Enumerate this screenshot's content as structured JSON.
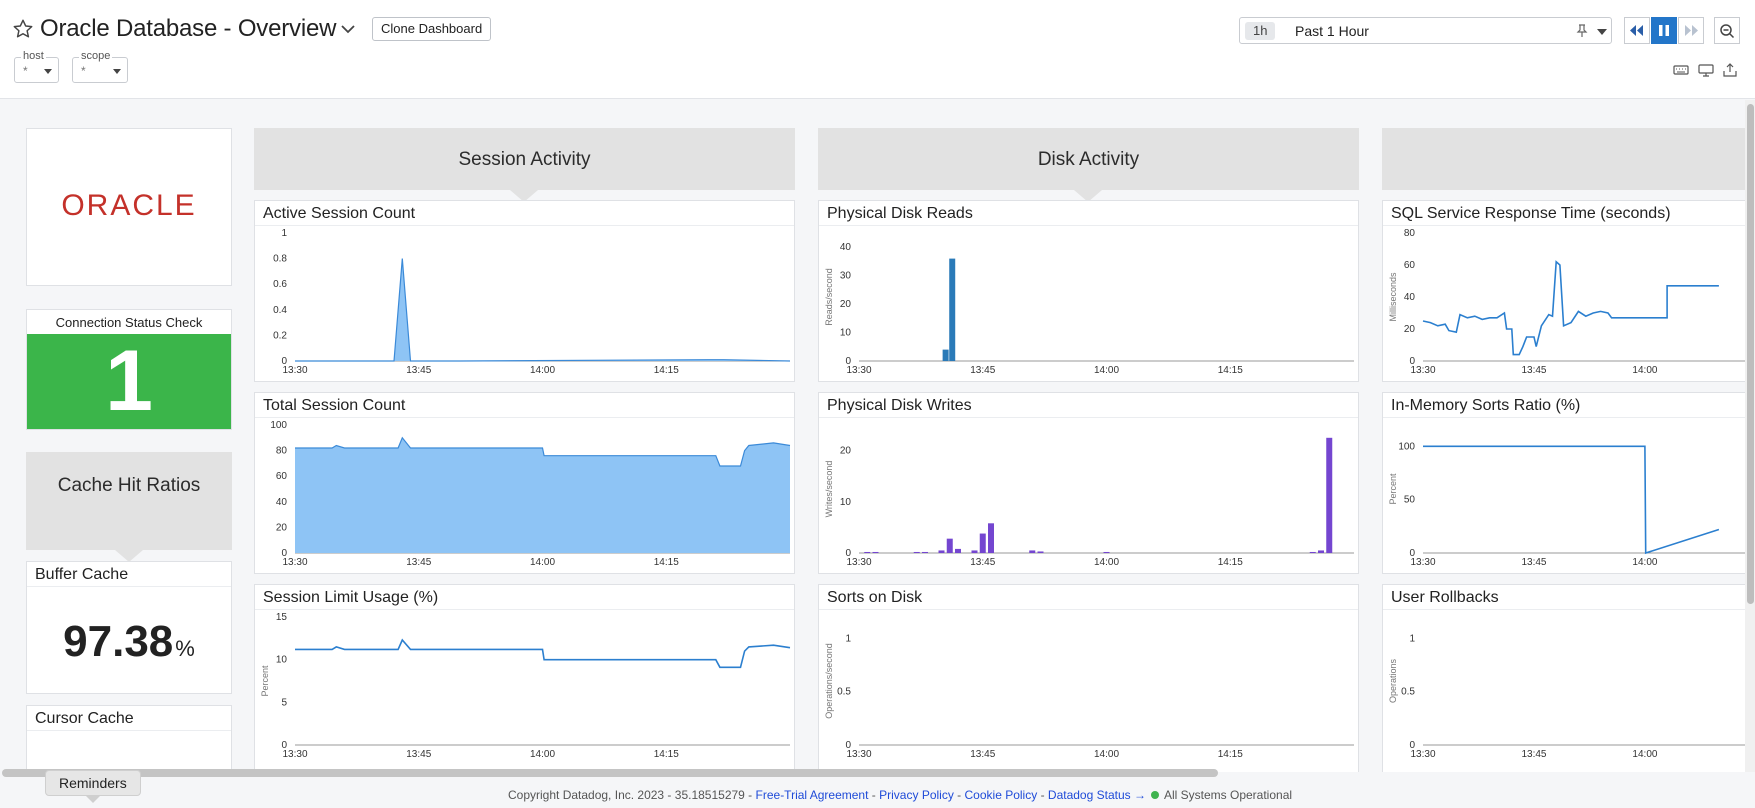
{
  "header": {
    "title": "Oracle Database - Overview",
    "clone_label": "Clone Dashboard",
    "variables": [
      {
        "label": "host",
        "value": "*"
      },
      {
        "label": "scope",
        "value": "*"
      }
    ],
    "time": {
      "chip": "1h",
      "range": "Past 1 Hour"
    }
  },
  "left": {
    "logo_text": "ORACLE",
    "connection": {
      "title": "Connection Status Check",
      "value": "1",
      "color": "#3bb54a"
    },
    "cache_note": "Cache Hit Ratios",
    "buffer": {
      "title": "Buffer Cache",
      "value": "97.38",
      "unit": "%"
    },
    "cursor": {
      "title": "Cursor Cache"
    }
  },
  "notes": {
    "session": "Session Activity",
    "disk": "Disk Activity"
  },
  "widgets": {
    "active_session": {
      "title": "Active Session Count"
    },
    "total_session": {
      "title": "Total Session Count"
    },
    "session_limit": {
      "title": "Session Limit Usage (%)"
    },
    "disk_reads": {
      "title": "Physical Disk Reads"
    },
    "disk_writes": {
      "title": "Physical Disk Writes"
    },
    "sorts_disk": {
      "title": "Sorts on Disk"
    },
    "sql_resp": {
      "title": "SQL Service Response Time (seconds)"
    },
    "inmem_sorts": {
      "title": "In-Memory Sorts Ratio (%)"
    },
    "user_rollbacks": {
      "title": "User Rollbacks"
    }
  },
  "chart_data": [
    {
      "id": "active_session",
      "type": "area",
      "ylabel": "",
      "ylim": [
        0,
        1
      ],
      "yticks": [
        "0",
        "0.2",
        "0.4",
        "0.6",
        "0.8",
        "1"
      ],
      "xticks": [
        "13:30",
        "13:45",
        "14:00",
        "14:15"
      ],
      "color": "#8ec4f5",
      "points": [
        [
          0,
          0
        ],
        [
          12,
          0
        ],
        [
          13,
          0.8
        ],
        [
          14,
          0
        ],
        [
          20,
          0
        ],
        [
          50,
          0.01
        ],
        [
          52,
          0.01
        ],
        [
          60,
          0
        ]
      ]
    },
    {
      "id": "total_session",
      "type": "area",
      "ylabel": "",
      "ylim": [
        0,
        100
      ],
      "yticks": [
        "0",
        "20",
        "40",
        "60",
        "80",
        "100"
      ],
      "xticks": [
        "13:30",
        "13:45",
        "14:00",
        "14:15"
      ],
      "color": "#8ec4f5",
      "points": [
        [
          0,
          82
        ],
        [
          4.5,
          82
        ],
        [
          5,
          84
        ],
        [
          6,
          82
        ],
        [
          12.5,
          82
        ],
        [
          13,
          90
        ],
        [
          14,
          82
        ],
        [
          30,
          82
        ],
        [
          30.2,
          76
        ],
        [
          51,
          76
        ],
        [
          51.5,
          68
        ],
        [
          54,
          68
        ],
        [
          54.5,
          80
        ],
        [
          55,
          84
        ],
        [
          58,
          86
        ],
        [
          60,
          84
        ]
      ]
    },
    {
      "id": "session_limit",
      "type": "line",
      "ylabel": "Percent",
      "ylim": [
        0,
        15
      ],
      "yticks": [
        "0",
        "5",
        "10",
        "15"
      ],
      "xticks": [
        "13:30",
        "13:45",
        "14:00",
        "14:15"
      ],
      "color": "#2b7fcf",
      "points": [
        [
          0,
          11.2
        ],
        [
          4.5,
          11.2
        ],
        [
          5,
          11.5
        ],
        [
          6,
          11.2
        ],
        [
          12.5,
          11.2
        ],
        [
          13,
          12.3
        ],
        [
          14,
          11.2
        ],
        [
          30,
          11.2
        ],
        [
          30.2,
          10
        ],
        [
          51,
          10
        ],
        [
          51.5,
          9.1
        ],
        [
          54,
          9.1
        ],
        [
          54.5,
          11
        ],
        [
          55,
          11.5
        ],
        [
          58,
          11.7
        ],
        [
          60,
          11.4
        ]
      ]
    },
    {
      "id": "disk_reads",
      "type": "bar",
      "ylabel": "Reads/second",
      "ylim": [
        0,
        45
      ],
      "yticks": [
        "0",
        "10",
        "20",
        "30",
        "40"
      ],
      "xticks": [
        "13:30",
        "13:45",
        "14:00",
        "14:15"
      ],
      "color": "#2a7ab8",
      "points": [
        [
          10.5,
          4
        ],
        [
          11.3,
          36
        ]
      ]
    },
    {
      "id": "disk_writes",
      "type": "bar",
      "ylabel": "Writes/second",
      "ylim": [
        0,
        25
      ],
      "yticks": [
        "0",
        "10",
        "20"
      ],
      "xticks": [
        "13:30",
        "13:45",
        "14:00",
        "14:15"
      ],
      "color": "#7446d0",
      "points": [
        [
          1,
          0.2
        ],
        [
          2,
          0.2
        ],
        [
          7,
          0.2
        ],
        [
          8,
          0.2
        ],
        [
          10,
          0.5
        ],
        [
          11,
          2.8
        ],
        [
          12,
          0.8
        ],
        [
          14,
          0.5
        ],
        [
          15,
          3.8
        ],
        [
          16,
          5.8
        ],
        [
          21,
          0.5
        ],
        [
          22,
          0.3
        ],
        [
          30,
          0.2
        ],
        [
          55,
          0.2
        ],
        [
          56,
          0.5
        ],
        [
          57,
          22.5
        ]
      ]
    },
    {
      "id": "sorts_disk",
      "type": "line",
      "ylabel": "Operations/second",
      "ylim": [
        0,
        1.2
      ],
      "yticks": [
        "0",
        "0.5",
        "1"
      ],
      "xticks": [
        "13:30",
        "13:45",
        "14:00",
        "14:15"
      ],
      "color": "#2b7fcf",
      "points": []
    },
    {
      "id": "sql_resp",
      "type": "line",
      "ylabel": "Milliseconds",
      "ylim": [
        0,
        80
      ],
      "yticks": [
        "0",
        "20",
        "40",
        "60",
        "80"
      ],
      "xticks": [
        "13:30",
        "13:45",
        "14:00"
      ],
      "color": "#2b7fcf",
      "points": [
        [
          0,
          25
        ],
        [
          1,
          24
        ],
        [
          2,
          22
        ],
        [
          3,
          23
        ],
        [
          3.5,
          19
        ],
        [
          4.5,
          18
        ],
        [
          5,
          29
        ],
        [
          6,
          27
        ],
        [
          7,
          28
        ],
        [
          8,
          26
        ],
        [
          9,
          27
        ],
        [
          10,
          27
        ],
        [
          11,
          30
        ],
        [
          11.3,
          20
        ],
        [
          12,
          20
        ],
        [
          12.2,
          4
        ],
        [
          13,
          4
        ],
        [
          13.5,
          9
        ],
        [
          14,
          15
        ],
        [
          15,
          15
        ],
        [
          15.3,
          9
        ],
        [
          16,
          22
        ],
        [
          17,
          29
        ],
        [
          17.5,
          28
        ],
        [
          18,
          62
        ],
        [
          18.5,
          60
        ],
        [
          19,
          22
        ],
        [
          20,
          24
        ],
        [
          21,
          31
        ],
        [
          22,
          28
        ],
        [
          23,
          30
        ],
        [
          24,
          31
        ],
        [
          25,
          30
        ],
        [
          25.5,
          27
        ],
        [
          33,
          27
        ],
        [
          33,
          47
        ],
        [
          40,
          47
        ]
      ]
    },
    {
      "id": "inmem_sorts",
      "type": "line",
      "ylabel": "Percent",
      "ylim": [
        0,
        120
      ],
      "yticks": [
        "0",
        "50",
        "100"
      ],
      "xticks": [
        "13:30",
        "13:45",
        "14:00"
      ],
      "color": "#2b7fcf",
      "points": [
        [
          0,
          100
        ],
        [
          30,
          100
        ],
        [
          30.1,
          0
        ],
        [
          40,
          22
        ]
      ]
    },
    {
      "id": "user_rollbacks",
      "type": "line",
      "ylabel": "Operations",
      "ylim": [
        0,
        1.2
      ],
      "yticks": [
        "0",
        "0.5",
        "1"
      ],
      "xticks": [
        "13:30",
        "13:45",
        "14:00"
      ],
      "color": "#2b7fcf",
      "points": []
    }
  ],
  "footer": {
    "copyright": "Copyright Datadog, Inc. 2023 - 35.18515279 -",
    "links": [
      "Free-Trial Agreement",
      "Privacy Policy",
      "Cookie Policy",
      "Datadog Status →"
    ],
    "sep": "-",
    "status": "All Systems Operational",
    "reminders": "Reminders"
  }
}
